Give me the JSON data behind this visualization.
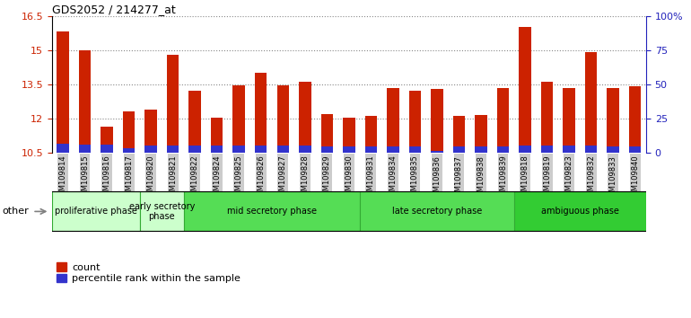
{
  "title": "GDS2052 / 214277_at",
  "samples": [
    "GSM109814",
    "GSM109815",
    "GSM109816",
    "GSM109817",
    "GSM109820",
    "GSM109821",
    "GSM109822",
    "GSM109824",
    "GSM109825",
    "GSM109826",
    "GSM109827",
    "GSM109828",
    "GSM109829",
    "GSM109830",
    "GSM109831",
    "GSM109834",
    "GSM109835",
    "GSM109836",
    "GSM109837",
    "GSM109838",
    "GSM109839",
    "GSM109818",
    "GSM109819",
    "GSM109823",
    "GSM109832",
    "GSM109833",
    "GSM109840"
  ],
  "count_values": [
    15.8,
    15.0,
    11.65,
    12.3,
    12.4,
    14.8,
    13.2,
    12.05,
    13.45,
    14.0,
    13.45,
    13.6,
    12.2,
    12.05,
    12.1,
    13.35,
    13.2,
    13.3,
    12.1,
    12.15,
    13.35,
    16.0,
    13.6,
    13.35,
    14.9,
    13.35,
    13.4
  ],
  "percentile_values": [
    0.38,
    0.35,
    0.35,
    0.18,
    0.32,
    0.32,
    0.3,
    0.32,
    0.3,
    0.32,
    0.3,
    0.3,
    0.28,
    0.28,
    0.28,
    0.28,
    0.28,
    0.08,
    0.28,
    0.28,
    0.28,
    0.3,
    0.3,
    0.3,
    0.3,
    0.28,
    0.28
  ],
  "ymin": 10.5,
  "ymax": 16.5,
  "yticks": [
    10.5,
    12.0,
    13.5,
    15.0,
    16.5
  ],
  "ytick_labels": [
    "10.5",
    "12",
    "13.5",
    "15",
    "16.5"
  ],
  "right_yticks": [
    0,
    25,
    50,
    75,
    100
  ],
  "right_ytick_labels": [
    "0",
    "25",
    "50",
    "75",
    "100%"
  ],
  "bar_color_red": "#cc2200",
  "bar_color_blue": "#3333cc",
  "group_boundaries": [
    {
      "label": "proliferative phase",
      "start": 0,
      "end": 4,
      "color": "#ccffcc"
    },
    {
      "label": "early secretory\nphase",
      "start": 4,
      "end": 6,
      "color": "#ccffcc"
    },
    {
      "label": "mid secretory phase",
      "start": 6,
      "end": 14,
      "color": "#55dd55"
    },
    {
      "label": "late secretory phase",
      "start": 14,
      "end": 21,
      "color": "#55dd55"
    },
    {
      "label": "ambiguous phase",
      "start": 21,
      "end": 27,
      "color": "#33cc33"
    }
  ],
  "tick_bg_color": "#cccccc",
  "dotted_line_color": "#888888",
  "legend_count_label": "count",
  "legend_percentile_label": "percentile rank within the sample",
  "other_label": "other"
}
